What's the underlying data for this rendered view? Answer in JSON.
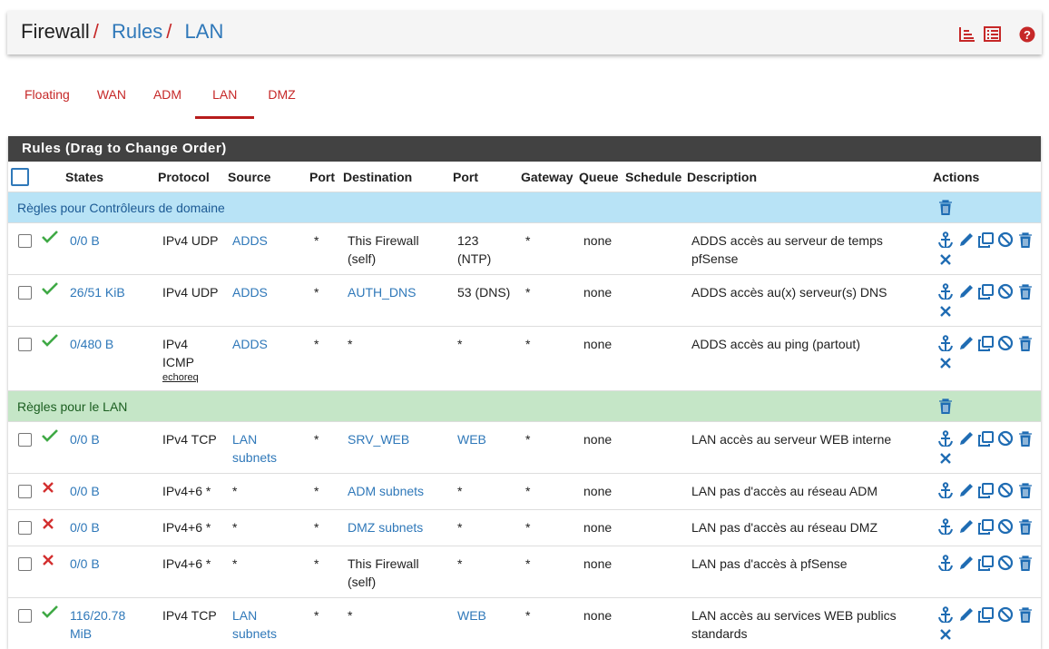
{
  "breadcrumb": [
    "Firewall",
    "Rules",
    "LAN"
  ],
  "tabs": {
    "items": [
      "Floating",
      "WAN",
      "ADM",
      "LAN",
      "DMZ"
    ],
    "active": 3
  },
  "panel": {
    "title": "Rules (Drag to Change Order)",
    "headers": [
      "States",
      "Protocol",
      "Source",
      "Port",
      "Destination",
      "Port",
      "Gateway",
      "Queue",
      "Schedule",
      "Description",
      "Actions"
    ],
    "rows": [
      {
        "kind": "separator",
        "label": "Règles pour Contrôleurs de domaine",
        "color": "#b8e3f6",
        "text_color": "#1c5a94"
      },
      {
        "kind": "rule",
        "status": "pass",
        "states": "0/0 B",
        "protocol": "IPv4 UDP",
        "source": "ADDS",
        "port": "*",
        "destination": "This Firewall (self)",
        "dport": "123 (NTP)",
        "gateway": "*",
        "queue": "none",
        "schedule": "",
        "description": "ADDS accès au serveur de temps pfSense"
      },
      {
        "kind": "rule",
        "status": "pass",
        "states": "26/51 KiB",
        "protocol": "IPv4 UDP",
        "source": "ADDS",
        "port": "*",
        "destination": "AUTH_DNS",
        "dport": "53 (DNS)",
        "gateway": "*",
        "queue": "none",
        "schedule": "",
        "description": "ADDS accès au(x) serveur(s) DNS"
      },
      {
        "kind": "rule",
        "status": "pass",
        "states": "0/480 B",
        "protocol": "IPv4 ICMP",
        "icmp_type": "echoreq",
        "source": "ADDS",
        "port": "*",
        "destination": "*",
        "dport": "*",
        "gateway": "*",
        "queue": "none",
        "schedule": "",
        "description": "ADDS accès au ping (partout)"
      },
      {
        "kind": "separator",
        "label": "Règles pour le LAN",
        "color": "#c5e6c7",
        "text_color": "#1b5e20"
      },
      {
        "kind": "rule",
        "status": "pass",
        "states": "0/0 B",
        "protocol": "IPv4 TCP",
        "source": "LAN subnets",
        "port": "*",
        "destination": "SRV_WEB",
        "dport": "WEB",
        "gateway": "*",
        "queue": "none",
        "schedule": "",
        "description": "LAN accès au serveur WEB interne"
      },
      {
        "kind": "rule",
        "status": "block",
        "states": "0/0 B",
        "protocol": "IPv4+6 *",
        "source": "*",
        "port": "*",
        "destination": "ADM subnets",
        "dport": "*",
        "gateway": "*",
        "queue": "none",
        "schedule": "",
        "description": "LAN pas d'accès au réseau ADM"
      },
      {
        "kind": "rule",
        "status": "block",
        "states": "0/0 B",
        "protocol": "IPv4+6 *",
        "source": "*",
        "port": "*",
        "destination": "DMZ subnets",
        "dport": "*",
        "gateway": "*",
        "queue": "none",
        "schedule": "",
        "description": "LAN pas d'accès au réseau DMZ"
      },
      {
        "kind": "rule",
        "status": "block",
        "states": "0/0 B",
        "protocol": "IPv4+6 *",
        "source": "*",
        "port": "*",
        "destination": "This Firewall (self)",
        "dport": "*",
        "gateway": "*",
        "queue": "none",
        "schedule": "",
        "description": "LAN pas d'accès à pfSense"
      },
      {
        "kind": "rule",
        "status": "pass",
        "states": "116/20.78 MiB",
        "protocol": "IPv4 TCP",
        "source": "LAN subnets",
        "port": "*",
        "destination": "*",
        "dport": "WEB",
        "gateway": "*",
        "queue": "none",
        "schedule": "",
        "description": "LAN accès au services WEB publics standards"
      }
    ]
  }
}
